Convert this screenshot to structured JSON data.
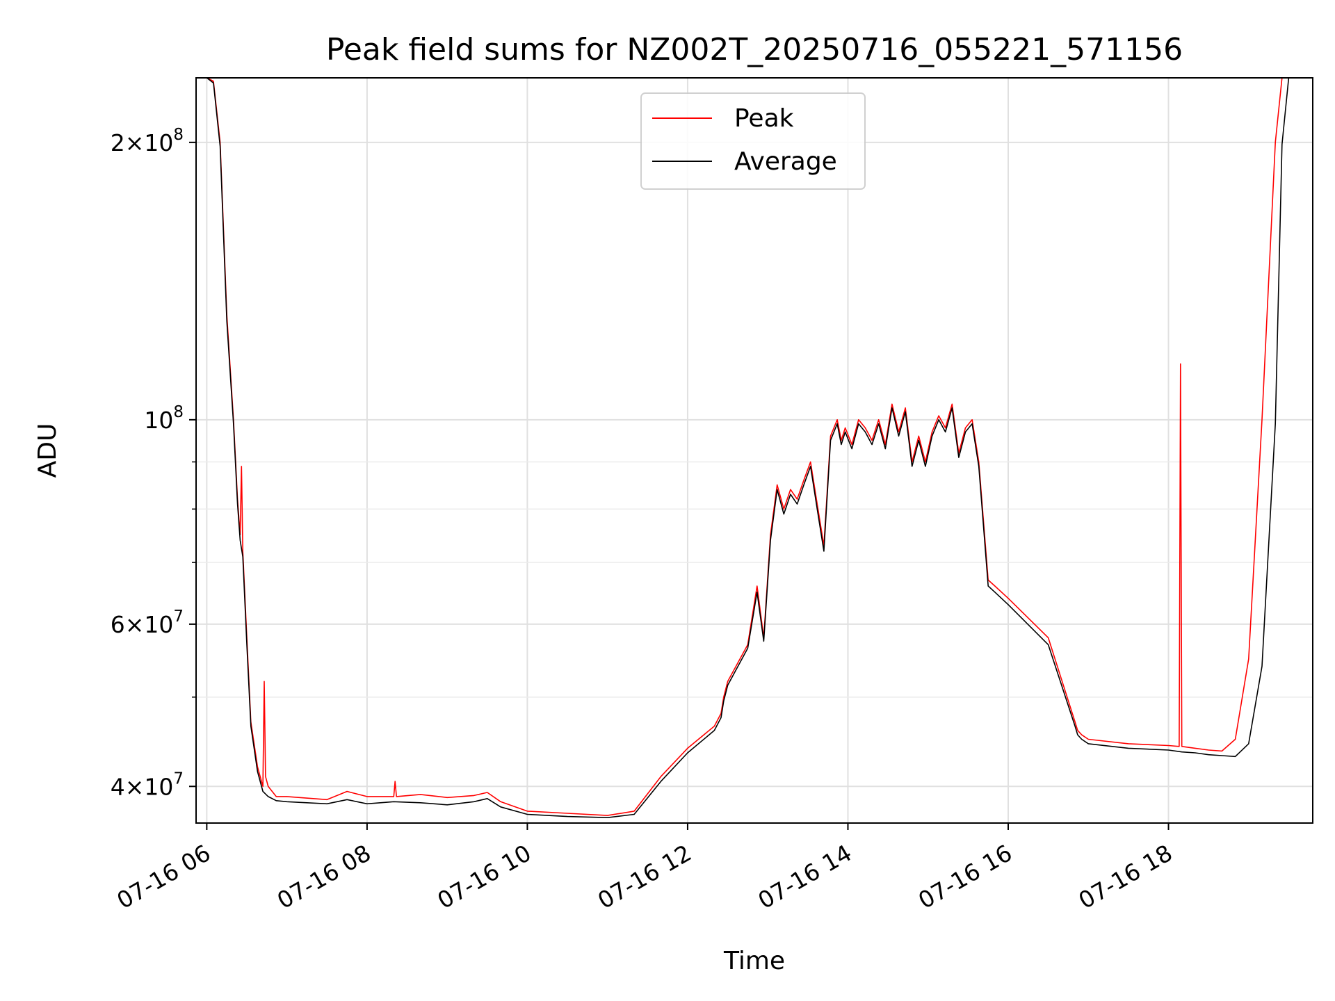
{
  "chart_data": {
    "type": "line",
    "title": "Peak field sums for NZ002T_20250716_055221_571156",
    "xlabel": "Time",
    "ylabel": "ADU",
    "yscale": "log",
    "xlim": [
      "2025-07-16 05:52",
      "2025-07-16 19:48"
    ],
    "ylim": [
      36500000,
      235000000
    ],
    "grid": true,
    "legend_position": "upper center",
    "x_tick_labels": [
      "07-16 06",
      "07-16 08",
      "07-16 10",
      "07-16 12",
      "07-16 14",
      "07-16 16",
      "07-16 18"
    ],
    "y_tick_labels": [
      {
        "value": 40000000,
        "mantissa": "4",
        "exponent": "7"
      },
      {
        "value": 60000000,
        "mantissa": "6",
        "exponent": "7"
      },
      {
        "value": 100000000,
        "mantissa": "",
        "exponent": "8"
      },
      {
        "value": 200000000,
        "mantissa": "2",
        "exponent": "8"
      }
    ],
    "series": [
      {
        "name": "Peak",
        "color": "#ff0000",
        "x": [
          "2025-07-16 05:52",
          "2025-07-16 06:00",
          "2025-07-16 06:05",
          "2025-07-16 06:10",
          "2025-07-16 06:15",
          "2025-07-16 06:20",
          "2025-07-16 06:23",
          "2025-07-16 06:25",
          "2025-07-16 06:26",
          "2025-07-16 06:27",
          "2025-07-16 06:30",
          "2025-07-16 06:33",
          "2025-07-16 06:38",
          "2025-07-16 06:42",
          "2025-07-16 06:43",
          "2025-07-16 06:44",
          "2025-07-16 06:46",
          "2025-07-16 06:52",
          "2025-07-16 07:00",
          "2025-07-16 07:30",
          "2025-07-16 07:45",
          "2025-07-16 08:00",
          "2025-07-16 08:20",
          "2025-07-16 08:21",
          "2025-07-16 08:22",
          "2025-07-16 08:40",
          "2025-07-16 09:00",
          "2025-07-16 09:20",
          "2025-07-16 09:30",
          "2025-07-16 09:40",
          "2025-07-16 10:00",
          "2025-07-16 10:30",
          "2025-07-16 11:00",
          "2025-07-16 11:20",
          "2025-07-16 11:40",
          "2025-07-16 12:00",
          "2025-07-16 12:20",
          "2025-07-16 12:25",
          "2025-07-16 12:27",
          "2025-07-16 12:30",
          "2025-07-16 12:45",
          "2025-07-16 12:52",
          "2025-07-16 12:57",
          "2025-07-16 13:02",
          "2025-07-16 13:07",
          "2025-07-16 13:12",
          "2025-07-16 13:17",
          "2025-07-16 13:22",
          "2025-07-16 13:27",
          "2025-07-16 13:32",
          "2025-07-16 13:37",
          "2025-07-16 13:42",
          "2025-07-16 13:47",
          "2025-07-16 13:52",
          "2025-07-16 13:55",
          "2025-07-16 13:58",
          "2025-07-16 14:03",
          "2025-07-16 14:08",
          "2025-07-16 14:13",
          "2025-07-16 14:18",
          "2025-07-16 14:23",
          "2025-07-16 14:28",
          "2025-07-16 14:33",
          "2025-07-16 14:38",
          "2025-07-16 14:43",
          "2025-07-16 14:48",
          "2025-07-16 14:53",
          "2025-07-16 14:58",
          "2025-07-16 15:03",
          "2025-07-16 15:08",
          "2025-07-16 15:13",
          "2025-07-16 15:18",
          "2025-07-16 15:23",
          "2025-07-16 15:28",
          "2025-07-16 15:33",
          "2025-07-16 15:38",
          "2025-07-16 15:45",
          "2025-07-16 15:50",
          "2025-07-16 16:00",
          "2025-07-16 16:30",
          "2025-07-16 16:50",
          "2025-07-16 16:52",
          "2025-07-16 16:55",
          "2025-07-16 17:00",
          "2025-07-16 17:30",
          "2025-07-16 18:00",
          "2025-07-16 18:08",
          "2025-07-16 18:09",
          "2025-07-16 18:10",
          "2025-07-16 18:20",
          "2025-07-16 18:30",
          "2025-07-16 18:40",
          "2025-07-16 18:50",
          "2025-07-16 19:00",
          "2025-07-16 19:10",
          "2025-07-16 19:20",
          "2025-07-16 19:25",
          "2025-07-16 19:30",
          "2025-07-16 19:48"
        ],
        "y": [
          235000000,
          235000000,
          233000000,
          200000000,
          130000000,
          100000000,
          82000000,
          75000000,
          89000000,
          72000000,
          58000000,
          47000000,
          42000000,
          40000000,
          52000000,
          41000000,
          40000000,
          39000000,
          39000000,
          38700000,
          39500000,
          39000000,
          39000000,
          40500000,
          39000000,
          39200000,
          38900000,
          39100000,
          39400000,
          38500000,
          37600000,
          37400000,
          37200000,
          37600000,
          41000000,
          44000000,
          46500000,
          48000000,
          50000000,
          52000000,
          57000000,
          66000000,
          58000000,
          75000000,
          85000000,
          80000000,
          84000000,
          82000000,
          86000000,
          90000000,
          81000000,
          73000000,
          96000000,
          100000000,
          95000000,
          98000000,
          94000000,
          100000000,
          98000000,
          95000000,
          100000000,
          94000000,
          104000000,
          97000000,
          103000000,
          90000000,
          96000000,
          90000000,
          97000000,
          101000000,
          98000000,
          104000000,
          92000000,
          98000000,
          100000000,
          90000000,
          67000000,
          66000000,
          64000000,
          58000000,
          47000000,
          46000000,
          45500000,
          45000000,
          44500000,
          44300000,
          44200000,
          115000000,
          44200000,
          44000000,
          43800000,
          43700000,
          45000000,
          55000000,
          100000000,
          200000000,
          235000000,
          235000000,
          235000000
        ]
      },
      {
        "name": "Average",
        "color": "#000000",
        "x": [
          "2025-07-16 05:52",
          "2025-07-16 06:00",
          "2025-07-16 06:05",
          "2025-07-16 06:10",
          "2025-07-16 06:15",
          "2025-07-16 06:20",
          "2025-07-16 06:23",
          "2025-07-16 06:25",
          "2025-07-16 06:27",
          "2025-07-16 06:30",
          "2025-07-16 06:33",
          "2025-07-16 06:38",
          "2025-07-16 06:42",
          "2025-07-16 06:46",
          "2025-07-16 06:52",
          "2025-07-16 07:00",
          "2025-07-16 07:30",
          "2025-07-16 07:45",
          "2025-07-16 08:00",
          "2025-07-16 08:20",
          "2025-07-16 08:40",
          "2025-07-16 09:00",
          "2025-07-16 09:20",
          "2025-07-16 09:30",
          "2025-07-16 09:40",
          "2025-07-16 10:00",
          "2025-07-16 10:30",
          "2025-07-16 11:00",
          "2025-07-16 11:20",
          "2025-07-16 11:40",
          "2025-07-16 12:00",
          "2025-07-16 12:20",
          "2025-07-16 12:25",
          "2025-07-16 12:27",
          "2025-07-16 12:30",
          "2025-07-16 12:45",
          "2025-07-16 12:52",
          "2025-07-16 12:57",
          "2025-07-16 13:02",
          "2025-07-16 13:07",
          "2025-07-16 13:12",
          "2025-07-16 13:17",
          "2025-07-16 13:22",
          "2025-07-16 13:27",
          "2025-07-16 13:32",
          "2025-07-16 13:37",
          "2025-07-16 13:42",
          "2025-07-16 13:47",
          "2025-07-16 13:52",
          "2025-07-16 13:55",
          "2025-07-16 13:58",
          "2025-07-16 14:03",
          "2025-07-16 14:08",
          "2025-07-16 14:13",
          "2025-07-16 14:18",
          "2025-07-16 14:23",
          "2025-07-16 14:28",
          "2025-07-16 14:33",
          "2025-07-16 14:38",
          "2025-07-16 14:43",
          "2025-07-16 14:48",
          "2025-07-16 14:53",
          "2025-07-16 14:58",
          "2025-07-16 15:03",
          "2025-07-16 15:08",
          "2025-07-16 15:13",
          "2025-07-16 15:18",
          "2025-07-16 15:23",
          "2025-07-16 15:28",
          "2025-07-16 15:33",
          "2025-07-16 15:38",
          "2025-07-16 15:45",
          "2025-07-16 15:50",
          "2025-07-16 16:00",
          "2025-07-16 16:30",
          "2025-07-16 16:50",
          "2025-07-16 16:52",
          "2025-07-16 16:55",
          "2025-07-16 17:00",
          "2025-07-16 17:30",
          "2025-07-16 18:00",
          "2025-07-16 18:10",
          "2025-07-16 18:20",
          "2025-07-16 18:30",
          "2025-07-16 18:40",
          "2025-07-16 18:50",
          "2025-07-16 19:00",
          "2025-07-16 19:10",
          "2025-07-16 19:20",
          "2025-07-16 19:25",
          "2025-07-16 19:30",
          "2025-07-16 19:48"
        ],
        "y": [
          235000000,
          235000000,
          232000000,
          198000000,
          128000000,
          99000000,
          81000000,
          74000000,
          71000000,
          57000000,
          46500000,
          41500000,
          39500000,
          39000000,
          38600000,
          38500000,
          38300000,
          38700000,
          38300000,
          38500000,
          38400000,
          38200000,
          38500000,
          38800000,
          38000000,
          37300000,
          37100000,
          37000000,
          37300000,
          40500000,
          43500000,
          46000000,
          47500000,
          49500000,
          51500000,
          56500000,
          65000000,
          57500000,
          74000000,
          84000000,
          79000000,
          83000000,
          81000000,
          85000000,
          89000000,
          80000000,
          72000000,
          95000000,
          99000000,
          94000000,
          97000000,
          93000000,
          99000000,
          97000000,
          94000000,
          99000000,
          93000000,
          103000000,
          96000000,
          102000000,
          89000000,
          95000000,
          89000000,
          96000000,
          100000000,
          97000000,
          103000000,
          91000000,
          97000000,
          99000000,
          89000000,
          66000000,
          65000000,
          63000000,
          57000000,
          46500000,
          45500000,
          45000000,
          44500000,
          44000000,
          43800000,
          43600000,
          43500000,
          43300000,
          43200000,
          43100000,
          44500000,
          54000000,
          99000000,
          199000000,
          235000000,
          235000000
        ]
      }
    ]
  }
}
